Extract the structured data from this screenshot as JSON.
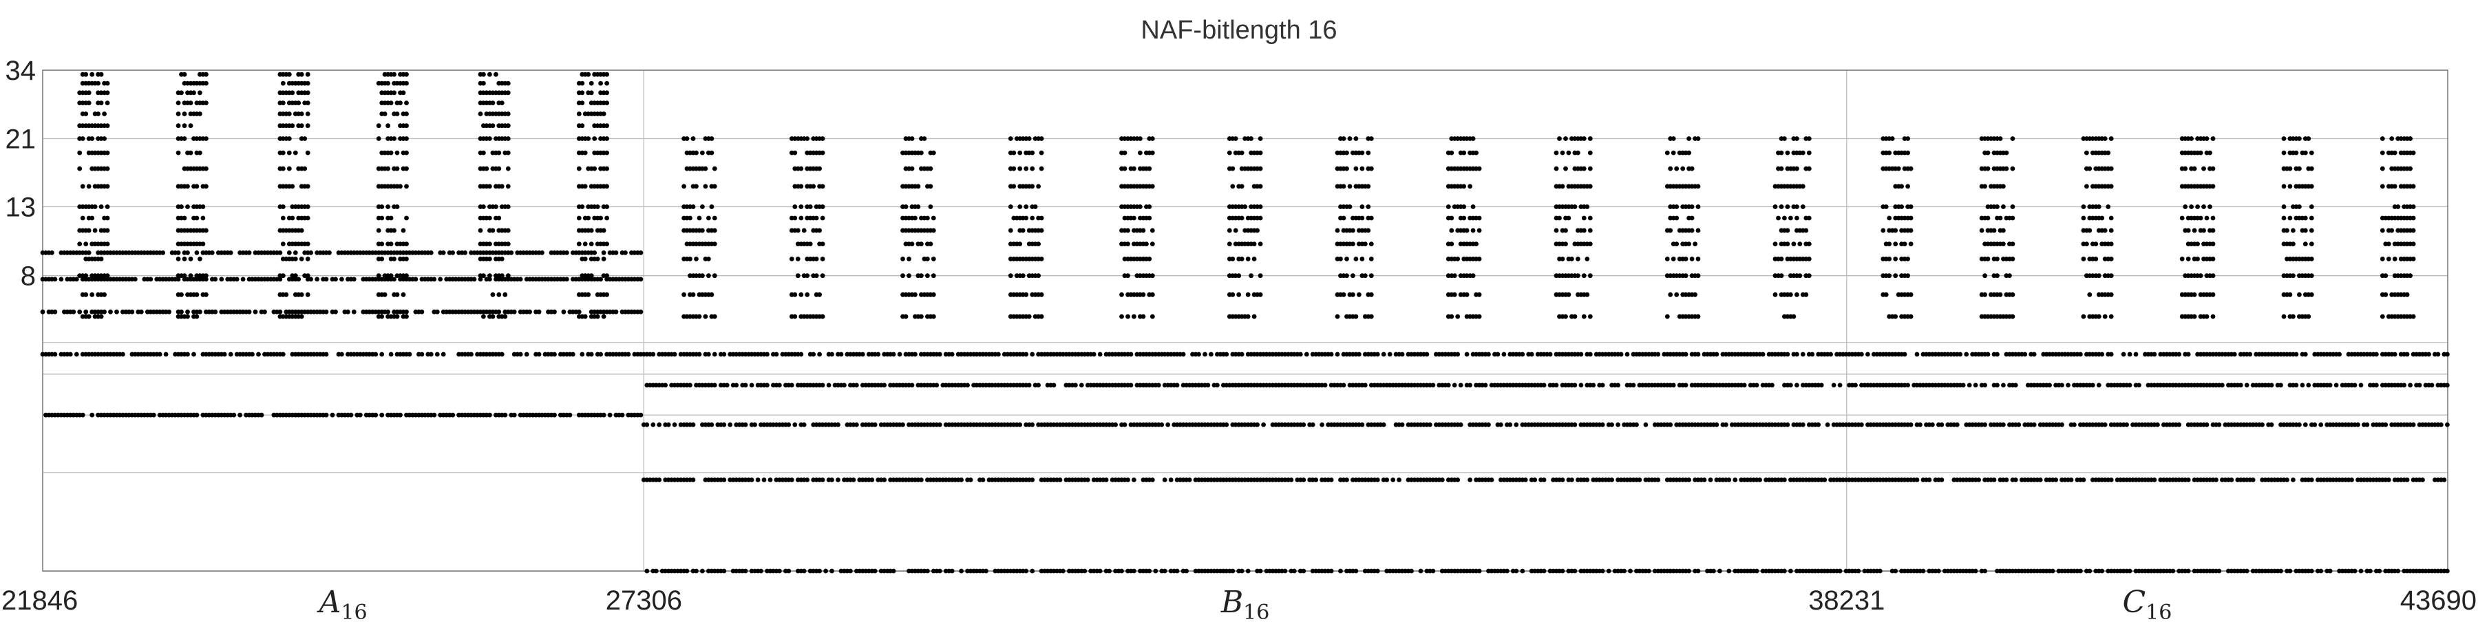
{
  "chart_data": {
    "type": "scatter",
    "title": "NAF-bitlength 16",
    "xlabel": "",
    "ylabel": "",
    "xlim": [
      21846,
      43690
    ],
    "ylim": [
      1,
      34
    ],
    "y_scale": "log",
    "grid": true,
    "legend": "none",
    "point_color": "#000000",
    "x_ticks": [
      21846,
      27306,
      38231,
      43690
    ],
    "y_ticks": [
      8,
      13,
      21,
      34
    ],
    "y_minor_gridlines": [
      1,
      2,
      3,
      4,
      5
    ],
    "segments": [
      {
        "label": "A",
        "subscript": "16",
        "x_start": 21846,
        "x_end": 27306
      },
      {
        "label": "B",
        "subscript": "16",
        "x_start": 27306,
        "x_end": 38231
      },
      {
        "label": "C",
        "subscript": "16",
        "x_start": 38231,
        "x_end": 43690
      }
    ],
    "series": [
      {
        "values_note_points": [
          [
            21846,
            5
          ],
          [
            22000,
            13
          ],
          [
            22100,
            21
          ],
          [
            22250,
            29
          ],
          [
            22600,
            34
          ],
          [
            22650,
            29
          ],
          [
            23000,
            25
          ],
          [
            23500,
            21
          ],
          [
            24000,
            13
          ],
          [
            24500,
            21
          ],
          [
            25000,
            13
          ],
          [
            26000,
            25
          ],
          [
            26500,
            34
          ],
          [
            27000,
            29
          ],
          [
            27306,
            8
          ],
          [
            28000,
            13
          ],
          [
            29000,
            21
          ],
          [
            29300,
            21
          ],
          [
            30500,
            13
          ],
          [
            31000,
            13
          ],
          [
            32500,
            13
          ],
          [
            33100,
            13
          ],
          [
            34500,
            21
          ],
          [
            35200,
            21
          ],
          [
            36500,
            13
          ],
          [
            38231,
            13
          ],
          [
            38500,
            21
          ],
          [
            39500,
            21
          ],
          [
            40500,
            13
          ],
          [
            41500,
            13
          ],
          [
            42500,
            13
          ],
          [
            43690,
            5
          ]
        ]
      }
    ]
  }
}
